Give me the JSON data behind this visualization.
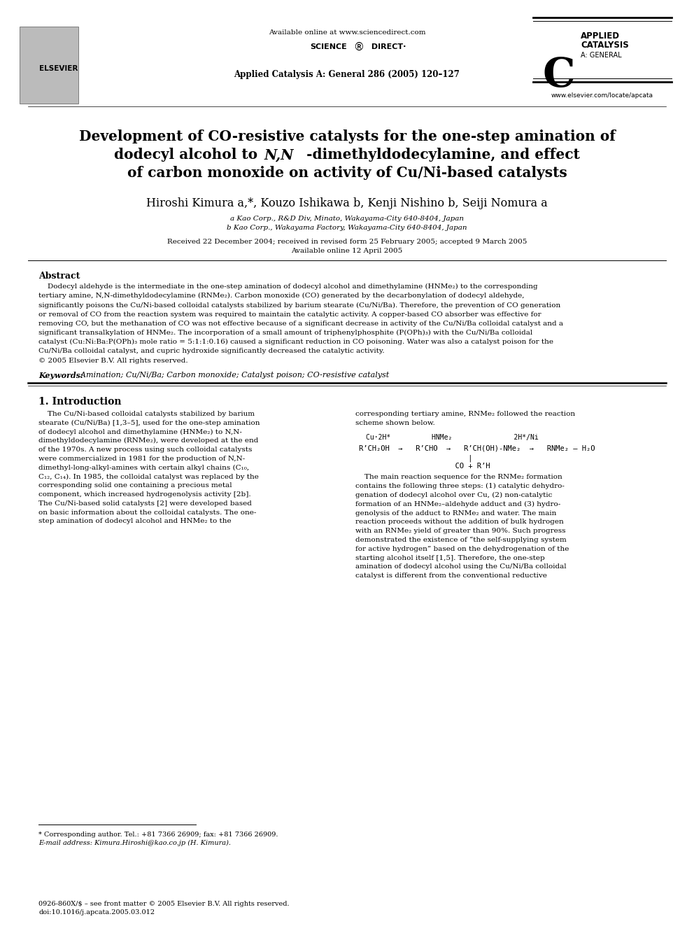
{
  "bg_color": "#ffffff",
  "header_available": "Available online at www.sciencedirect.com",
  "header_journal": "Applied Catalysis A: General 286 (2005) 120–127",
  "header_website": "www.elsevier.com/locate/apcata",
  "title_line1": "Development of CO-resistive catalysts for the one-step amination of",
  "title_line2a": "dodecyl alcohol to ",
  "title_line2b": "N,N",
  "title_line2c": "-dimethyldodecylamine, and effect",
  "title_line3": "of carbon monoxide on activity of Cu/Ni-based catalysts",
  "author_line": "Hiroshi Kimura a,*, Kouzo Ishikawa b, Kenji Nishino b, Seiji Nomura a",
  "affil_a": "a Kao Corp., R&D Div, Minato, Wakayama-City 640-8404, Japan",
  "affil_b": "b Kao Corp., Wakayama Factory, Wakayama-City 640-8404, Japan",
  "received": "Received 22 December 2004; received in revised form 25 February 2005; accepted 9 March 2005",
  "available": "Available online 12 April 2005",
  "abstract_title": "Abstract",
  "abstract_indent": "    Dodecyl aldehyde is the intermediate in the one-step amination of dodecyl alcohol and dimethylamine (HNMe₂) to the corresponding",
  "abstract_lines": [
    "    Dodecyl aldehyde is the intermediate in the one-step amination of dodecyl alcohol and dimethylamine (HNMe₂) to the corresponding",
    "tertiary amine, N,N-dimethyldodecylamine (RNMe₂). Carbon monoxide (CO) generated by the decarbonylation of dodecyl aldehyde,",
    "significantly poisons the Cu/Ni-based colloidal catalysts stabilized by barium stearate (Cu/Ni/Ba). Therefore, the prevention of CO generation",
    "or removal of CO from the reaction system was required to maintain the catalytic activity. A copper-based CO absorber was effective for",
    "removing CO, but the methanation of CO was not effective because of a significant decrease in activity of the Cu/Ni/Ba colloidal catalyst and a",
    "significant transalkylation of HNMe₂. The incorporation of a small amount of triphenylphosphite (P(OPh)₃) with the Cu/Ni/Ba colloidal",
    "catalyst (Cu:Ni:Ba:P(OPh)₃ mole ratio = 5:1:1:0.16) caused a significant reduction in CO poisoning. Water was also a catalyst poison for the",
    "Cu/Ni/Ba colloidal catalyst, and cupric hydroxide significantly decreased the catalytic activity.",
    "© 2005 Elsevier B.V. All rights reserved."
  ],
  "keywords_label": "Keywords:",
  "keywords_text": "  Amination; Cu/Ni/Ba; Carbon monoxide; Catalyst poison; CO-resistive catalyst",
  "intro_title": "1. Introduction",
  "intro_col1": [
    "    The Cu/Ni-based colloidal catalysts stabilized by barium",
    "stearate (Cu/Ni/Ba) [1,3–5], used for the one-step amination",
    "of dodecyl alcohol and dimethylamine (HNMe₂) to N,N-",
    "dimethyldodecylamine (RNMe₂), were developed at the end",
    "of the 1970s. A new process using such colloidal catalysts",
    "were commercialized in 1981 for the production of N,N-",
    "dimethyl-long-alkyl-amines with certain alkyl chains (C₁₀,",
    "C₁₂, C₁₄). In 1985, the colloidal catalyst was replaced by the",
    "corresponding solid one containing a precious metal",
    "component, which increased hydrogenolysis activity [2b].",
    "The Cu/Ni-based solid catalysts [2] were developed based",
    "on basic information about the colloidal catalysts. The one-",
    "step amination of dodecyl alcohol and HNMe₂ to the"
  ],
  "intro_col2_top": [
    "corresponding tertiary amine, RNMe₂ followed the reaction",
    "scheme shown below."
  ],
  "scheme_line1": "Cu·2H*          HNMe₂               2H*/Ni",
  "scheme_line2": "R’CH₂OH  →   R’CHO  →   R’CH(OH)-NMe₂  →   RNMe₂ – H₂O",
  "scheme_line3": "                         |",
  "scheme_line4": "                      CO + R’H",
  "intro_col2_bottom": [
    "    The main reaction sequence for the RNMe₂ formation",
    "contains the following three steps: (1) catalytic dehydro-",
    "genation of dodecyl alcohol over Cu, (2) non-catalytic",
    "formation of an HNMe₂–aldehyde adduct and (3) hydro-",
    "genolysis of the adduct to RNMe₂ and water. The main",
    "reaction proceeds without the addition of bulk hydrogen",
    "with an RNMe₂ yield of greater than 90%. Such progress",
    "demonstrated the existence of “the self-supplying system",
    "for active hydrogen” based on the dehydrogenation of the",
    "starting alcohol itself [1,5]. Therefore, the one-step",
    "amination of dodecyl alcohol using the Cu/Ni/Ba colloidal",
    "catalyst is different from the conventional reductive"
  ],
  "footnote_line": "* Corresponding author. Tel.: +81 7366 26909; fax: +81 7366 26909.",
  "footnote_email": "E-mail address: Kimura.Hiroshi@kao.co.jp (H. Kimura).",
  "footer1": "0926-860X/$ – see front matter © 2005 Elsevier B.V. All rights reserved.",
  "footer2": "doi:10.1016/j.apcata.2005.03.012"
}
